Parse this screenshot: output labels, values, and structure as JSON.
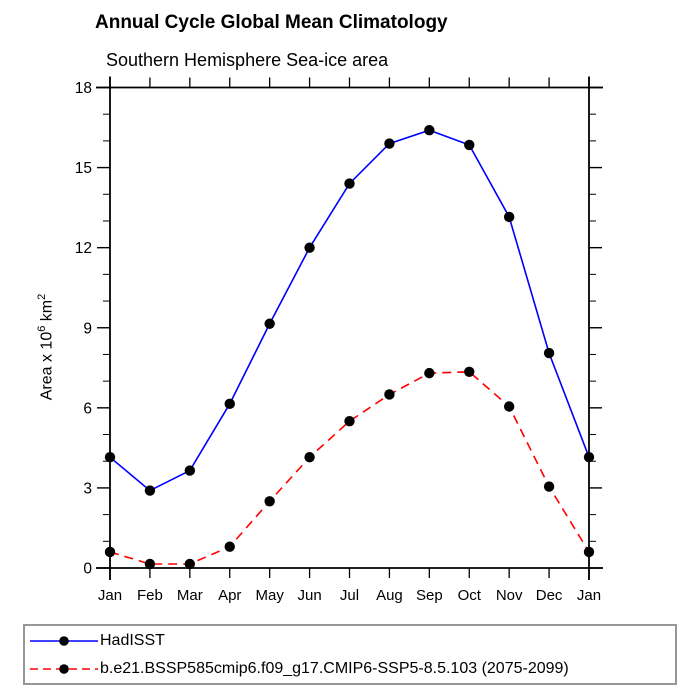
{
  "chart_data": {
    "type": "line",
    "title": "Annual Cycle Global Mean Climatology",
    "subtitle": "Southern Hemisphere Sea-ice area",
    "ylabel": "Area x 10^6 km^2",
    "ylabel_parts": {
      "prefix": "Area x 10",
      "sup1": "6",
      "mid": " km",
      "sup2": "2"
    },
    "x_categories": [
      "Jan",
      "Feb",
      "Mar",
      "Apr",
      "May",
      "Jun",
      "Jul",
      "Aug",
      "Sep",
      "Oct",
      "Nov",
      "Dec",
      "Jan"
    ],
    "ylim": [
      0,
      18
    ],
    "y_major_ticks": [
      0,
      3,
      6,
      9,
      12,
      15,
      18
    ],
    "y_minor_step": 1,
    "grid": false,
    "legend_position": "bottom",
    "marker_color": "#000000",
    "axis_color": "#000000",
    "series": [
      {
        "name": "HadISST",
        "color": "#0000ff",
        "style": "solid",
        "values": [
          4.15,
          2.9,
          3.65,
          6.15,
          9.15,
          12.0,
          14.4,
          15.9,
          16.4,
          15.85,
          13.15,
          8.05,
          4.15
        ]
      },
      {
        "name": "b.e21.BSSP585cmip6.f09_g17.CMIP6-SSP5-8.5.103 (2075-2099)",
        "color": "#ff0000",
        "style": "dashed",
        "values": [
          0.6,
          0.15,
          0.15,
          0.8,
          2.5,
          4.15,
          5.5,
          6.5,
          7.3,
          7.35,
          6.05,
          3.05,
          0.6
        ]
      }
    ]
  },
  "legend": {
    "entries": [
      {
        "label": "HadISST",
        "color": "#0000ff",
        "dash": "none",
        "marker": "#000000"
      },
      {
        "label": "b.e21.BSSP585cmip6.f09_g17.CMIP6-SSP5-8.5.103 (2075-2099)",
        "color": "#ff0000",
        "dash": "8,5",
        "marker": "#000000"
      }
    ]
  }
}
